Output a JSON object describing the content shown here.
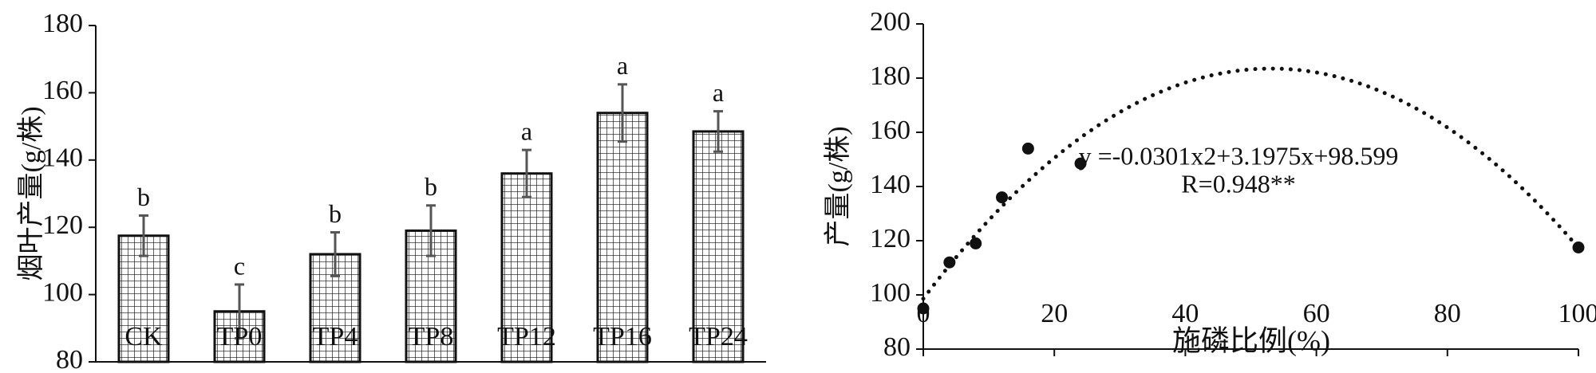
{
  "chart_data": [
    {
      "type": "bar",
      "ylabel": "烟叶产量(g/株)",
      "xlabel": "",
      "ylim": [
        80,
        180
      ],
      "yticks": [
        80,
        100,
        120,
        140,
        160,
        180
      ],
      "categories": [
        "CK",
        "TP0",
        "TP4",
        "TP8",
        "TP12",
        "TP16",
        "TP24"
      ],
      "values": [
        117.5,
        95.0,
        112.0,
        119.0,
        136.0,
        154.0,
        148.5
      ],
      "errors": [
        6,
        8,
        6.5,
        7.5,
        7,
        8.5,
        6
      ],
      "significance": [
        "b",
        "c",
        "b",
        "b",
        "a",
        "a",
        "a"
      ],
      "bar_pattern": "grid-hatch",
      "grid": false
    },
    {
      "type": "scatter",
      "ylabel": "产量(g/株)",
      "xlabel": "施磷比例(%)",
      "xlim": [
        0,
        100
      ],
      "ylim": [
        80,
        200
      ],
      "xticks": [
        0,
        20,
        40,
        60,
        80,
        100
      ],
      "yticks": [
        80,
        100,
        120,
        140,
        160,
        180,
        200
      ],
      "x": [
        0,
        4,
        8,
        12,
        16,
        24,
        100
      ],
      "y": [
        95.0,
        112.0,
        119.0,
        136.0,
        154.0,
        148.5,
        117.5
      ],
      "trendline": {
        "type": "polynomial-2",
        "coefficients": {
          "a": -0.0301,
          "b": 3.1975,
          "c": 98.599
        },
        "style": "dotted"
      },
      "equation_text": "y =-0.0301x2+3.1975x+98.599",
      "r_text": "R=0.948**",
      "grid": false
    }
  ]
}
